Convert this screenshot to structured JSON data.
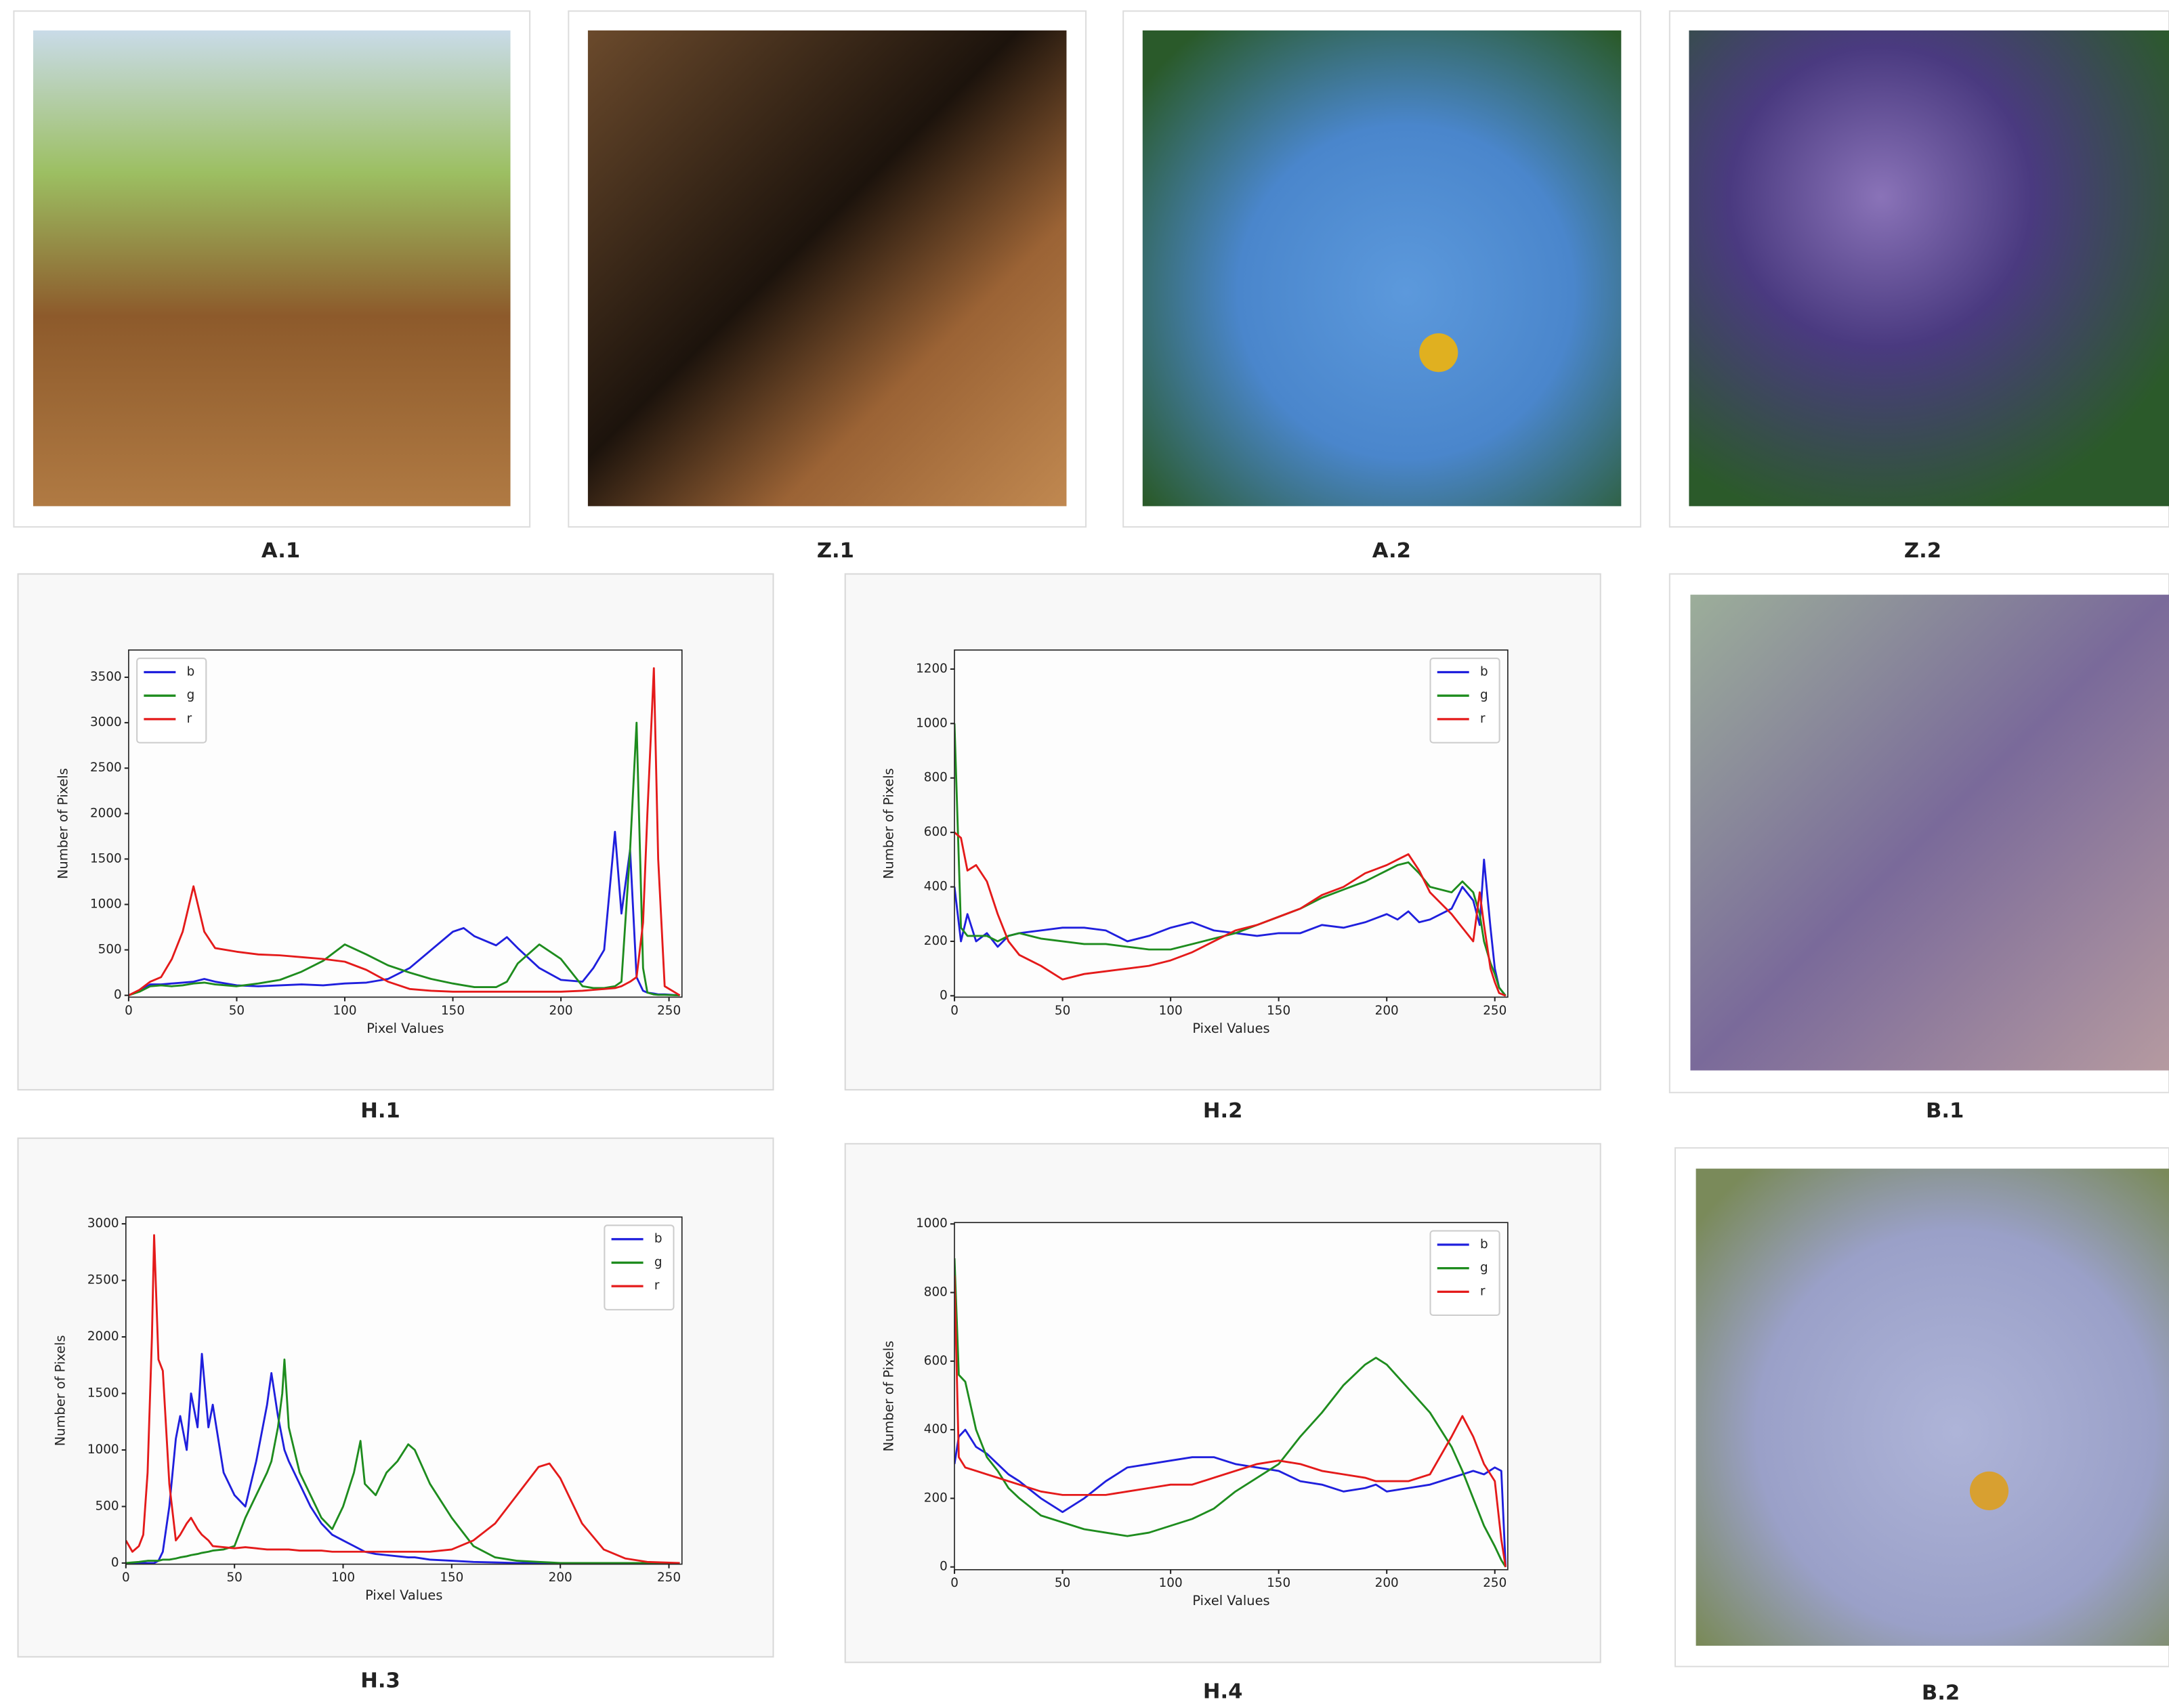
{
  "images": [
    {
      "caption": "A.1"
    },
    {
      "caption": "Z.1"
    },
    {
      "caption": "A.2"
    },
    {
      "caption": "Z.2"
    },
    {
      "caption": "B.1"
    },
    {
      "caption": "B.2"
    }
  ],
  "chart_data": [
    {
      "type": "line",
      "caption": "H.1",
      "xlabel": "Pixel Values",
      "ylabel": "Number of Pixels",
      "legend": "upper left",
      "xlim": [
        0,
        256
      ],
      "ylim": [
        -20,
        3800
      ],
      "xticks": [
        0,
        50,
        100,
        150,
        200,
        250
      ],
      "yticks": [
        0,
        500,
        1000,
        1500,
        2000,
        2500,
        3000,
        3500
      ],
      "x": [
        0,
        5,
        10,
        15,
        20,
        25,
        30,
        35,
        40,
        50,
        60,
        70,
        80,
        90,
        100,
        110,
        120,
        130,
        140,
        150,
        155,
        160,
        170,
        175,
        180,
        190,
        200,
        210,
        215,
        220,
        225,
        228,
        232,
        235,
        238,
        240,
        243,
        245,
        248,
        255
      ],
      "series": [
        {
          "name": "b",
          "color": "#1f1fdd",
          "values": [
            0,
            50,
            120,
            120,
            130,
            140,
            150,
            180,
            150,
            110,
            100,
            110,
            120,
            110,
            130,
            140,
            180,
            300,
            500,
            700,
            740,
            650,
            550,
            640,
            520,
            300,
            170,
            150,
            300,
            500,
            1800,
            900,
            1600,
            200,
            50,
            30,
            20,
            10,
            10,
            0
          ]
        },
        {
          "name": "g",
          "color": "#1e8c1e",
          "values": [
            0,
            40,
            100,
            110,
            100,
            110,
            130,
            140,
            120,
            100,
            130,
            170,
            260,
            380,
            560,
            450,
            330,
            250,
            180,
            130,
            110,
            90,
            90,
            150,
            350,
            560,
            400,
            100,
            80,
            80,
            100,
            150,
            1600,
            3000,
            300,
            30,
            10,
            5,
            5,
            0
          ]
        },
        {
          "name": "r",
          "color": "#e41a1a",
          "values": [
            0,
            60,
            150,
            200,
            400,
            700,
            1200,
            700,
            520,
            480,
            450,
            440,
            420,
            400,
            370,
            280,
            150,
            70,
            50,
            40,
            40,
            40,
            40,
            40,
            40,
            40,
            40,
            50,
            60,
            70,
            80,
            100,
            150,
            200,
            800,
            2000,
            3600,
            1500,
            100,
            0
          ]
        }
      ]
    },
    {
      "type": "line",
      "caption": "H.2",
      "xlabel": "Pixel Values",
      "ylabel": "Number of Pixels",
      "legend": "upper right",
      "xlim": [
        0,
        256
      ],
      "ylim": [
        -5,
        1270
      ],
      "xticks": [
        0,
        50,
        100,
        150,
        200,
        250
      ],
      "yticks": [
        0,
        200,
        400,
        600,
        800,
        1000,
        1200
      ],
      "x": [
        0,
        3,
        6,
        10,
        15,
        20,
        25,
        30,
        40,
        50,
        60,
        70,
        80,
        90,
        100,
        110,
        120,
        130,
        140,
        150,
        160,
        170,
        180,
        190,
        200,
        205,
        210,
        215,
        220,
        230,
        235,
        240,
        243,
        245,
        248,
        250,
        252,
        255
      ],
      "series": [
        {
          "name": "b",
          "color": "#1f1fdd",
          "values": [
            400,
            200,
            300,
            200,
            230,
            180,
            220,
            230,
            240,
            250,
            250,
            240,
            200,
            220,
            250,
            270,
            240,
            230,
            220,
            230,
            230,
            260,
            250,
            270,
            300,
            280,
            310,
            270,
            280,
            320,
            400,
            350,
            260,
            500,
            250,
            100,
            30,
            0
          ]
        },
        {
          "name": "g",
          "color": "#1e8c1e",
          "values": [
            1000,
            250,
            220,
            220,
            220,
            200,
            220,
            230,
            210,
            200,
            190,
            190,
            180,
            170,
            170,
            190,
            210,
            230,
            260,
            290,
            320,
            360,
            390,
            420,
            460,
            480,
            490,
            450,
            400,
            380,
            420,
            380,
            300,
            200,
            120,
            80,
            30,
            0
          ]
        },
        {
          "name": "r",
          "color": "#e41a1a",
          "values": [
            600,
            580,
            460,
            480,
            420,
            300,
            200,
            150,
            110,
            60,
            80,
            90,
            100,
            110,
            130,
            160,
            200,
            240,
            260,
            290,
            320,
            370,
            400,
            450,
            480,
            500,
            520,
            460,
            380,
            300,
            250,
            200,
            380,
            260,
            100,
            50,
            10,
            0
          ]
        }
      ]
    },
    {
      "type": "line",
      "caption": "H.3",
      "xlabel": "Pixel Values",
      "ylabel": "Number of Pixels",
      "legend": "upper right",
      "xlim": [
        0,
        256
      ],
      "ylim": [
        -10,
        3060
      ],
      "xticks": [
        0,
        50,
        100,
        150,
        200,
        250
      ],
      "yticks": [
        0,
        500,
        1000,
        1500,
        2000,
        2500,
        3000
      ],
      "x": [
        0,
        3,
        6,
        8,
        10,
        12,
        13,
        15,
        17,
        20,
        23,
        25,
        28,
        30,
        33,
        35,
        38,
        40,
        45,
        50,
        55,
        60,
        65,
        67,
        70,
        72,
        73,
        75,
        80,
        85,
        90,
        95,
        100,
        105,
        108,
        110,
        115,
        120,
        125,
        130,
        133,
        140,
        150,
        160,
        170,
        180,
        190,
        195,
        200,
        210,
        220,
        230,
        240,
        255
      ],
      "series": [
        {
          "name": "b",
          "color": "#1f1fdd",
          "values": [
            0,
            0,
            0,
            0,
            0,
            0,
            0,
            20,
            100,
            500,
            1100,
            1300,
            1000,
            1500,
            1200,
            1850,
            1200,
            1400,
            800,
            600,
            500,
            900,
            1400,
            1680,
            1300,
            1100,
            1000,
            900,
            700,
            500,
            350,
            250,
            200,
            150,
            120,
            100,
            80,
            70,
            60,
            50,
            50,
            30,
            20,
            10,
            5,
            0,
            0,
            0,
            0,
            0,
            0,
            0,
            0,
            0
          ]
        },
        {
          "name": "g",
          "color": "#1e8c1e",
          "values": [
            0,
            5,
            10,
            15,
            20,
            20,
            20,
            20,
            30,
            30,
            40,
            50,
            60,
            70,
            80,
            90,
            100,
            110,
            120,
            150,
            400,
            600,
            800,
            900,
            1200,
            1500,
            1800,
            1200,
            800,
            600,
            400,
            300,
            500,
            800,
            1080,
            700,
            600,
            800,
            900,
            1050,
            1000,
            700,
            400,
            150,
            50,
            20,
            10,
            5,
            0,
            0,
            0,
            0,
            0,
            0
          ]
        },
        {
          "name": "r",
          "color": "#e41a1a",
          "values": [
            200,
            100,
            150,
            250,
            800,
            2000,
            2900,
            1800,
            1700,
            700,
            200,
            250,
            350,
            400,
            300,
            250,
            200,
            150,
            140,
            130,
            140,
            130,
            120,
            120,
            120,
            120,
            120,
            120,
            110,
            110,
            110,
            100,
            100,
            100,
            100,
            100,
            100,
            100,
            100,
            100,
            100,
            100,
            120,
            200,
            350,
            600,
            850,
            880,
            750,
            350,
            120,
            40,
            10,
            0
          ]
        }
      ]
    },
    {
      "type": "line",
      "caption": "H.4",
      "xlabel": "Pixel Values",
      "ylabel": "Number of Pixels",
      "legend": "upper right",
      "xlim": [
        0,
        256
      ],
      "ylim": [
        -8,
        1004
      ],
      "xticks": [
        0,
        50,
        100,
        150,
        200,
        250
      ],
      "yticks": [
        0,
        200,
        400,
        600,
        800,
        1000
      ],
      "x": [
        0,
        2,
        5,
        10,
        15,
        20,
        25,
        30,
        40,
        50,
        60,
        70,
        80,
        90,
        100,
        110,
        120,
        130,
        140,
        150,
        160,
        170,
        180,
        190,
        195,
        200,
        210,
        220,
        230,
        235,
        240,
        245,
        250,
        253,
        255
      ],
      "series": [
        {
          "name": "b",
          "color": "#1f1fdd",
          "values": [
            300,
            380,
            400,
            350,
            330,
            300,
            270,
            250,
            200,
            160,
            200,
            250,
            290,
            300,
            310,
            320,
            320,
            300,
            290,
            280,
            250,
            240,
            220,
            230,
            240,
            220,
            230,
            240,
            260,
            270,
            280,
            270,
            290,
            280,
            0
          ]
        },
        {
          "name": "g",
          "color": "#1e8c1e",
          "values": [
            900,
            560,
            540,
            400,
            320,
            280,
            230,
            200,
            150,
            130,
            110,
            100,
            90,
            100,
            120,
            140,
            170,
            220,
            260,
            300,
            380,
            450,
            530,
            590,
            610,
            590,
            520,
            450,
            350,
            280,
            200,
            120,
            60,
            20,
            0
          ]
        },
        {
          "name": "r",
          "color": "#e41a1a",
          "values": [
            850,
            320,
            290,
            280,
            270,
            260,
            250,
            240,
            220,
            210,
            210,
            210,
            220,
            230,
            240,
            240,
            260,
            280,
            300,
            310,
            300,
            280,
            270,
            260,
            250,
            250,
            250,
            270,
            380,
            440,
            380,
            300,
            250,
            80,
            0
          ]
        }
      ]
    }
  ]
}
